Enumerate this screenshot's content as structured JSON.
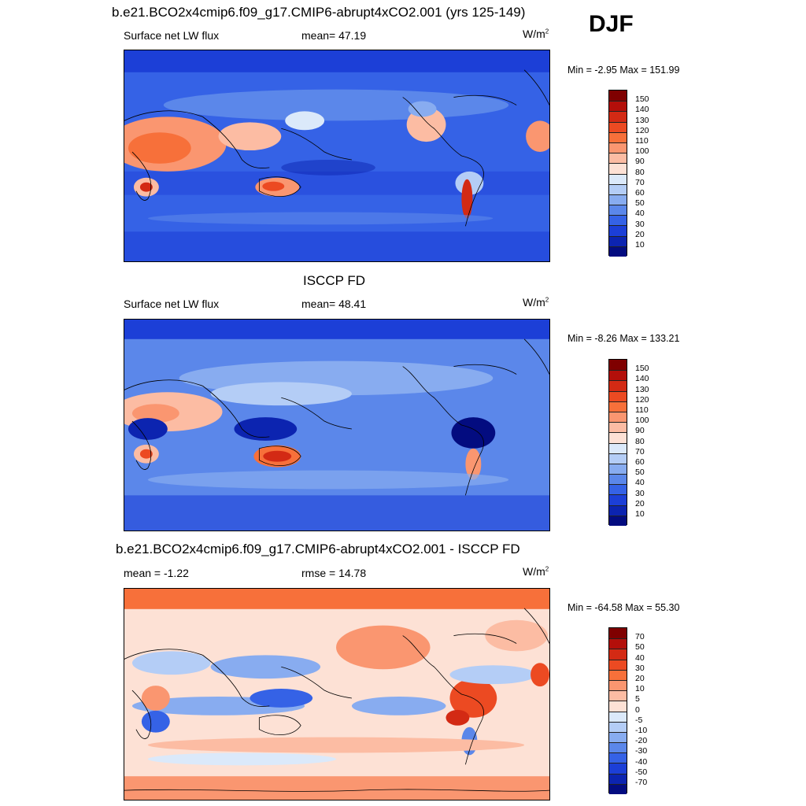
{
  "header": {
    "season": "DJF"
  },
  "panels": [
    {
      "title": "b.e21.BCO2x4cmip6.f09_g17.CMIP6-abrupt4xCO2.001 (yrs 125-149)",
      "left_label": "Surface net LW flux",
      "center_label": "mean=  47.19",
      "units_base": "W/m",
      "units_exp": "2",
      "minmax": "Min =  -2.95 Max = 151.99",
      "map_name": "model-lw-flux-map",
      "palette": "abs",
      "colorbar_labels": [
        "150",
        "140",
        "130",
        "120",
        "110",
        "100",
        "90",
        "80",
        "70",
        "60",
        "50",
        "40",
        "30",
        "20",
        "10"
      ],
      "colorbar_colors": [
        "#7f0000",
        "#b30f0a",
        "#d32a14",
        "#ec4a22",
        "#f7703a",
        "#fa9670",
        "#fcbca3",
        "#fde1d5",
        "#dbe9fa",
        "#b4cdf6",
        "#88acf0",
        "#5b87ea",
        "#3562e6",
        "#1c3fd7",
        "#0c24b0",
        "#030c80"
      ]
    },
    {
      "title": "ISCCP FD",
      "left_label": "Surface net LW flux",
      "center_label": "mean=  48.41",
      "units_base": "W/m",
      "units_exp": "2",
      "minmax": "Min =  -8.26 Max = 133.21",
      "map_name": "obs-lw-flux-map",
      "palette": "abs",
      "colorbar_labels": [
        "150",
        "140",
        "130",
        "120",
        "110",
        "100",
        "90",
        "80",
        "70",
        "60",
        "50",
        "40",
        "30",
        "20",
        "10"
      ],
      "colorbar_colors": [
        "#7f0000",
        "#b30f0a",
        "#d32a14",
        "#ec4a22",
        "#f7703a",
        "#fa9670",
        "#fcbca3",
        "#fde1d5",
        "#dbe9fa",
        "#b4cdf6",
        "#88acf0",
        "#5b87ea",
        "#3562e6",
        "#1c3fd7",
        "#0c24b0",
        "#030c80"
      ]
    },
    {
      "title": "b.e21.BCO2x4cmip6.f09_g17.CMIP6-abrupt4xCO2.001 - ISCCP FD",
      "left_label": "mean =  -1.22",
      "center_label": "rmse =  14.78",
      "units_base": "W/m",
      "units_exp": "2",
      "minmax": "Min = -64.58 Max =  55.30",
      "map_name": "difference-map",
      "palette": "diff",
      "colorbar_labels": [
        "70",
        "50",
        "40",
        "30",
        "20",
        "10",
        "5",
        "0",
        "-5",
        "-10",
        "-20",
        "-30",
        "-40",
        "-50",
        "-70"
      ],
      "colorbar_colors": [
        "#7f0000",
        "#b30f0a",
        "#d32a14",
        "#ec4a22",
        "#f7703a",
        "#fa9670",
        "#fcbca3",
        "#fde1d5",
        "#dbe9fa",
        "#b4cdf6",
        "#88acf0",
        "#5b87ea",
        "#3562e6",
        "#1c3fd7",
        "#0c24b0",
        "#030c80"
      ]
    }
  ]
}
